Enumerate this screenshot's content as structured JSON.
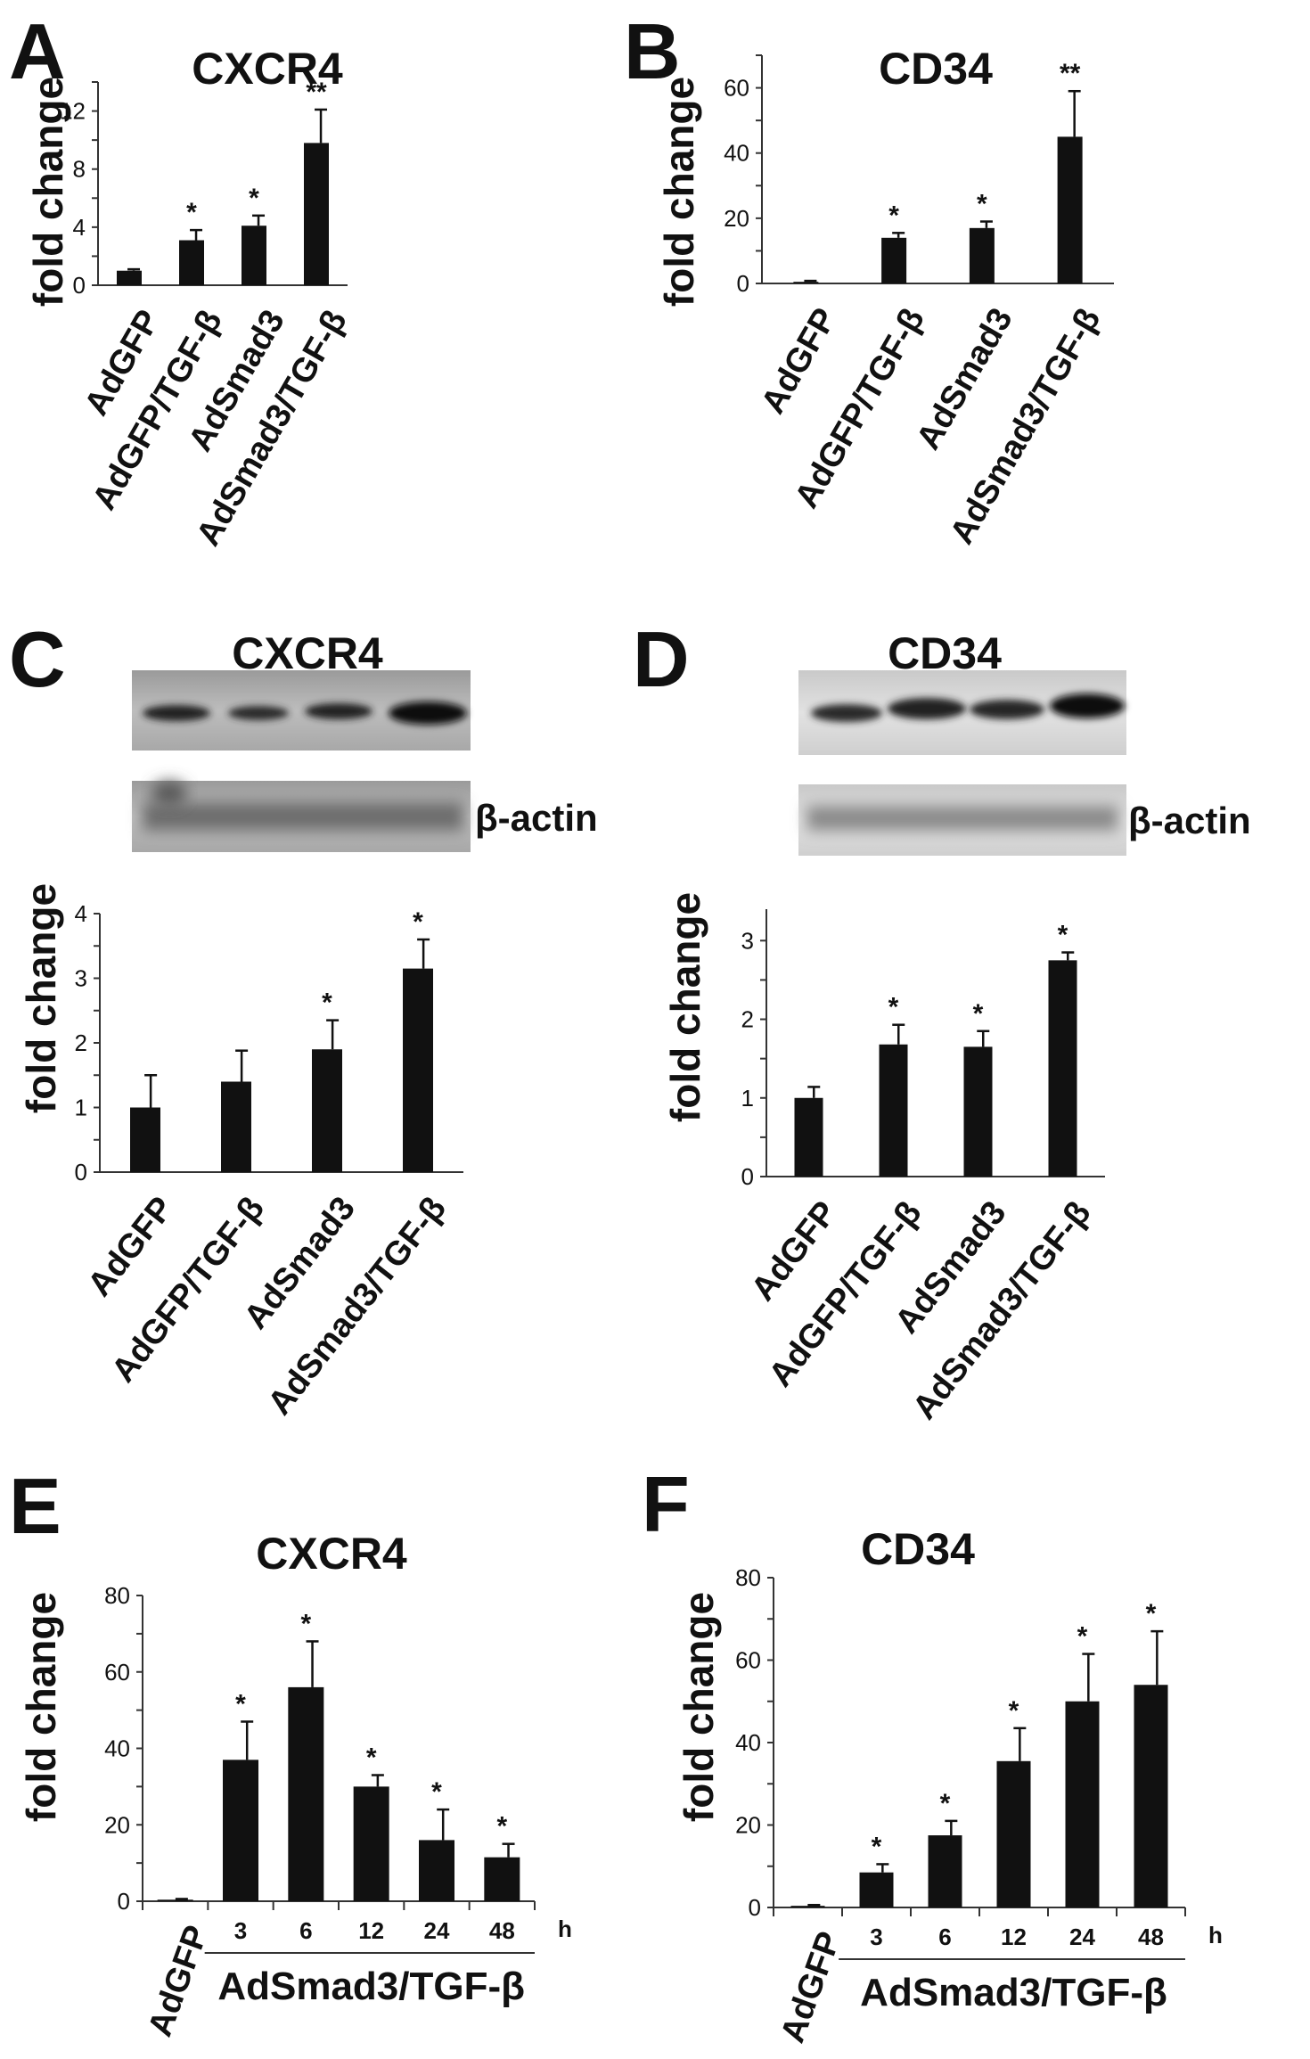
{
  "panels": [
    {
      "id": "A",
      "letter": "A",
      "title": "CXCR4",
      "ylabel": "fold change",
      "ylim": [
        0,
        14
      ],
      "ticks": [
        0,
        4,
        8,
        12
      ],
      "tick_step": 2,
      "categories": [
        "AdGFP",
        "AdGFP/TGF-β",
        "AdSmad3",
        "AdSmad3/TGF-β"
      ],
      "values": [
        1.0,
        3.1,
        4.1,
        9.8
      ],
      "errors": [
        0.1,
        0.7,
        0.7,
        2.3
      ],
      "sig": [
        "",
        "*",
        "*",
        "**"
      ]
    },
    {
      "id": "B",
      "letter": "B",
      "title": "CD34",
      "ylabel": "fold change",
      "ylim": [
        0,
        70
      ],
      "ticks": [
        0,
        20,
        40,
        60
      ],
      "tick_step": 10,
      "categories": [
        "AdGFP",
        "AdGFP/TGF-β",
        "AdSmad3",
        "AdSmad3/TGF-β"
      ],
      "values": [
        0.5,
        14,
        17,
        45
      ],
      "errors": [
        0.3,
        1.5,
        2,
        14
      ],
      "sig": [
        "",
        "*",
        "*",
        "**"
      ]
    },
    {
      "id": "C",
      "letter": "C",
      "title": "CXCR4",
      "ylabel": "fold change",
      "blot_label": "β-actin",
      "ylim": [
        0,
        4
      ],
      "ticks": [
        0,
        1,
        2,
        3,
        4
      ],
      "tick_step": 0.5,
      "categories": [
        "AdGFP",
        "AdGFP/TGF-β",
        "AdSmad3",
        "AdSmad3/TGF-β"
      ],
      "values": [
        1.0,
        1.4,
        1.9,
        3.15
      ],
      "errors": [
        0.5,
        0.48,
        0.45,
        0.45
      ],
      "sig": [
        "",
        "",
        "*",
        "*"
      ]
    },
    {
      "id": "D",
      "letter": "D",
      "title": "CD34",
      "ylabel": "fold change",
      "blot_label": "β-actin",
      "ylim": [
        0,
        3.4
      ],
      "ticks": [
        0,
        1,
        2,
        3
      ],
      "tick_step": 0.5,
      "categories": [
        "AdGFP",
        "AdGFP/TGF-β",
        "AdSmad3",
        "AdSmad3/TGF-β"
      ],
      "values": [
        1.0,
        1.68,
        1.65,
        2.75
      ],
      "errors": [
        0.14,
        0.25,
        0.2,
        0.1
      ],
      "sig": [
        "",
        "*",
        "*",
        "*"
      ]
    },
    {
      "id": "E",
      "letter": "E",
      "title": "CXCR4",
      "ylabel": "fold change",
      "ylim": [
        0,
        80
      ],
      "ticks": [
        0,
        20,
        40,
        60,
        80
      ],
      "tick_step": 10,
      "control": "AdGFP",
      "group_label": "AdSmad3/TGF-β",
      "time_unit": "h",
      "categories": [
        "AdGFP",
        "3",
        "6",
        "12",
        "24",
        "48"
      ],
      "values": [
        0.4,
        37,
        56,
        30,
        16,
        11.5
      ],
      "errors": [
        0.2,
        10,
        12,
        3,
        8,
        3.5
      ],
      "sig": [
        "",
        "*",
        "*",
        "*",
        "*",
        "*"
      ]
    },
    {
      "id": "F",
      "letter": "F",
      "title": "CD34",
      "ylabel": "fold change",
      "ylim": [
        0,
        80
      ],
      "ticks": [
        0,
        20,
        40,
        60,
        80
      ],
      "tick_step": 10,
      "control": "AdGFP",
      "group_label": "AdSmad3/TGF-β",
      "time_unit": "h",
      "categories": [
        "AdGFP",
        "3",
        "6",
        "12",
        "24",
        "48"
      ],
      "values": [
        0.4,
        8.5,
        17.5,
        35.5,
        50,
        54
      ],
      "errors": [
        0.2,
        2,
        3.5,
        8,
        11.5,
        13
      ],
      "sig": [
        "",
        "*",
        "*",
        "*",
        "*",
        "*"
      ]
    }
  ],
  "chart_data": [
    {
      "type": "bar",
      "panel": "A",
      "title": "CXCR4",
      "xlabel": "",
      "ylabel": "fold change",
      "ylim": [
        0,
        14
      ],
      "grid": false,
      "categories": [
        "AdGFP",
        "AdGFP/TGF-β",
        "AdSmad3",
        "AdSmad3/TGF-β"
      ],
      "values": [
        1.0,
        3.1,
        4.1,
        9.8
      ],
      "errors": [
        0.1,
        0.7,
        0.7,
        2.3
      ],
      "annotations": [
        "",
        "*",
        "*",
        "**"
      ]
    },
    {
      "type": "bar",
      "panel": "B",
      "title": "CD34",
      "xlabel": "",
      "ylabel": "fold change",
      "ylim": [
        0,
        70
      ],
      "grid": false,
      "categories": [
        "AdGFP",
        "AdGFP/TGF-β",
        "AdSmad3",
        "AdSmad3/TGF-β"
      ],
      "values": [
        0.5,
        14,
        17,
        45
      ],
      "errors": [
        0.3,
        1.5,
        2,
        14
      ],
      "annotations": [
        "",
        "*",
        "*",
        "**"
      ]
    },
    {
      "type": "bar",
      "panel": "C",
      "title": "CXCR4",
      "xlabel": "",
      "ylabel": "fold change",
      "ylim": [
        0,
        4
      ],
      "grid": false,
      "categories": [
        "AdGFP",
        "AdGFP/TGF-β",
        "AdSmad3",
        "AdSmad3/TGF-β"
      ],
      "values": [
        1.0,
        1.4,
        1.9,
        3.15
      ],
      "errors": [
        0.5,
        0.48,
        0.45,
        0.45
      ],
      "annotations": [
        "",
        "",
        "*",
        "*"
      ]
    },
    {
      "type": "bar",
      "panel": "D",
      "title": "CD34",
      "xlabel": "",
      "ylabel": "fold change",
      "ylim": [
        0,
        3.4
      ],
      "grid": false,
      "categories": [
        "AdGFP",
        "AdGFP/TGF-β",
        "AdSmad3",
        "AdSmad3/TGF-β"
      ],
      "values": [
        1.0,
        1.68,
        1.65,
        2.75
      ],
      "errors": [
        0.14,
        0.25,
        0.2,
        0.1
      ],
      "annotations": [
        "",
        "*",
        "*",
        "*"
      ]
    },
    {
      "type": "bar",
      "panel": "E",
      "title": "CXCR4",
      "xlabel": "AdSmad3/TGF-β (h)",
      "ylabel": "fold change",
      "ylim": [
        0,
        80
      ],
      "grid": false,
      "categories": [
        "AdGFP",
        "3",
        "6",
        "12",
        "24",
        "48"
      ],
      "values": [
        0.4,
        37,
        56,
        30,
        16,
        11.5
      ],
      "errors": [
        0.2,
        10,
        12,
        3,
        8,
        3.5
      ],
      "annotations": [
        "",
        "*",
        "*",
        "*",
        "*",
        "*"
      ]
    },
    {
      "type": "bar",
      "panel": "F",
      "title": "CD34",
      "xlabel": "AdSmad3/TGF-β (h)",
      "ylabel": "fold change",
      "ylim": [
        0,
        80
      ],
      "grid": false,
      "categories": [
        "AdGFP",
        "3",
        "6",
        "12",
        "24",
        "48"
      ],
      "values": [
        0.4,
        8.5,
        17.5,
        35.5,
        50,
        54
      ],
      "errors": [
        0.2,
        2,
        3.5,
        8,
        11.5,
        13
      ],
      "annotations": [
        "",
        "*",
        "*",
        "*",
        "*",
        "*"
      ]
    }
  ]
}
